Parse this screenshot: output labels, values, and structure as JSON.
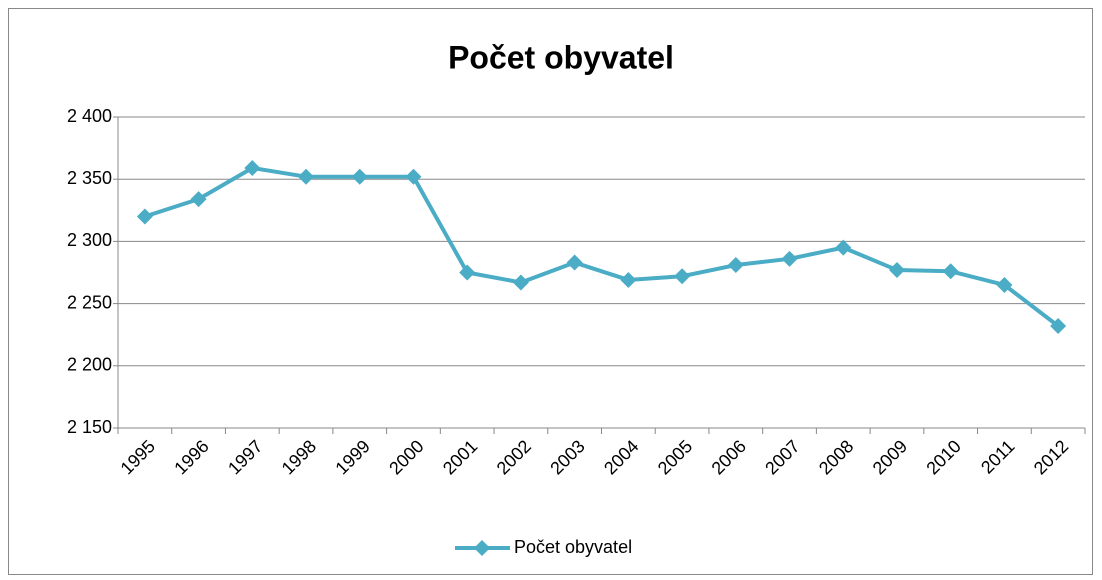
{
  "chart_data": {
    "type": "line",
    "title": "Počet obyvatel",
    "categories": [
      "1995",
      "1996",
      "1997",
      "1998",
      "1999",
      "2000",
      "2001",
      "2002",
      "2003",
      "2004",
      "2005",
      "2006",
      "2007",
      "2008",
      "2009",
      "2010",
      "2011",
      "2012"
    ],
    "series": [
      {
        "name": "Počet obyvatel",
        "color": "#4bacc6",
        "values": [
          2320,
          2334,
          2359,
          2352,
          2352,
          2352,
          2275,
          2267,
          2283,
          2269,
          2272,
          2281,
          2286,
          2295,
          2277,
          2276,
          2265,
          2232
        ]
      }
    ],
    "ylim": [
      2150,
      2400
    ],
    "yticks": [
      {
        "value": 2150,
        "label": "2 150"
      },
      {
        "value": 2200,
        "label": "2 200"
      },
      {
        "value": 2250,
        "label": "2 250"
      },
      {
        "value": 2300,
        "label": "2 300"
      },
      {
        "value": 2350,
        "label": "2 350"
      },
      {
        "value": 2400,
        "label": "2 400"
      }
    ],
    "grid": true,
    "legend": "bottom"
  }
}
